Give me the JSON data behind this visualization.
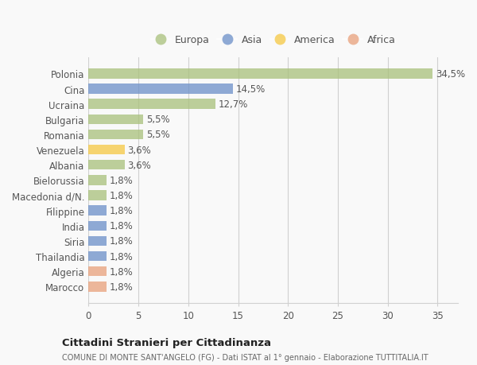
{
  "countries": [
    "Polonia",
    "Cina",
    "Ucraina",
    "Bulgaria",
    "Romania",
    "Venezuela",
    "Albania",
    "Bielorussia",
    "Macedonia d/N.",
    "Filippine",
    "India",
    "Siria",
    "Thailandia",
    "Algeria",
    "Marocco"
  ],
  "values": [
    34.5,
    14.5,
    12.7,
    5.5,
    5.5,
    3.6,
    3.6,
    1.8,
    1.8,
    1.8,
    1.8,
    1.8,
    1.8,
    1.8,
    1.8
  ],
  "labels": [
    "34,5%",
    "14,5%",
    "12,7%",
    "5,5%",
    "5,5%",
    "3,6%",
    "3,6%",
    "1,8%",
    "1,8%",
    "1,8%",
    "1,8%",
    "1,8%",
    "1,8%",
    "1,8%",
    "1,8%"
  ],
  "continents": [
    "Europa",
    "Asia",
    "Europa",
    "Europa",
    "Europa",
    "America",
    "Europa",
    "Europa",
    "Europa",
    "Asia",
    "Asia",
    "Asia",
    "Asia",
    "Africa",
    "Africa"
  ],
  "colors": {
    "Europa": "#a8c07a",
    "Asia": "#6b8fc8",
    "America": "#f5c842",
    "Africa": "#e8a07a"
  },
  "legend_order": [
    "Europa",
    "Asia",
    "America",
    "Africa"
  ],
  "title": "Cittadini Stranieri per Cittadinanza",
  "subtitle": "COMUNE DI MONTE SANT'ANGELO (FG) - Dati ISTAT al 1° gennaio - Elaborazione TUTTITALIA.IT",
  "xlim": [
    0,
    37
  ],
  "background_color": "#f9f9f9",
  "grid_color": "#d0d0d0",
  "text_color": "#555555",
  "label_fontsize": 8.5,
  "tick_fontsize": 8.5,
  "bar_alpha": 0.75,
  "bar_height": 0.65
}
